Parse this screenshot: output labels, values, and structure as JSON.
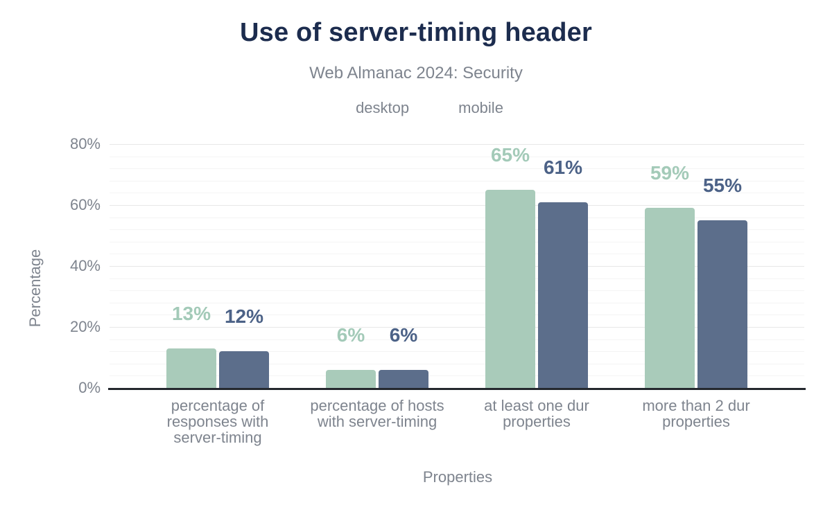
{
  "colors": {
    "title_text": "#1c2c4e",
    "muted_text": "#7e848e",
    "axis_line": "#24282e",
    "grid_major": "#e7e7e7",
    "grid_minor": "#f4f4f4",
    "desktop": "#a9cbba",
    "mobile": "#5c6e8b"
  },
  "chart_data": {
    "type": "bar",
    "title": "Use of server-timing header",
    "subtitle": "Web Almanac 2024: Security",
    "xlabel": "Properties",
    "ylabel": "Percentage",
    "ylim": [
      0,
      80
    ],
    "ytick_labels": [
      "0%",
      "20%",
      "40%",
      "60%",
      "80%"
    ],
    "ytick_step": 20,
    "minor_grid_step": 4,
    "grid": "horizontal major + minor, no vertical grid",
    "legend_position": "top center",
    "categories": [
      "percentage of responses with server-timing",
      "percentage of hosts with server-timing",
      "at least one dur properties",
      "more than 2 dur properties"
    ],
    "category_lines": [
      [
        "percentage of",
        "responses with",
        "server-timing"
      ],
      [
        "percentage of hosts",
        "with server-timing"
      ],
      [
        "at least one dur",
        "properties"
      ],
      [
        "more than 2 dur",
        "properties"
      ]
    ],
    "series": [
      {
        "name": "desktop",
        "color": "#a9cbba",
        "label_color": "#a3cab8",
        "values": [
          13,
          6,
          65,
          59
        ],
        "labels": [
          "13%",
          "6%",
          "65%",
          "59%"
        ]
      },
      {
        "name": "mobile",
        "color": "#5c6e8b",
        "label_color": "#4c6287",
        "values": [
          12,
          6,
          61,
          55
        ],
        "labels": [
          "12%",
          "6%",
          "61%",
          "55%"
        ]
      }
    ]
  }
}
